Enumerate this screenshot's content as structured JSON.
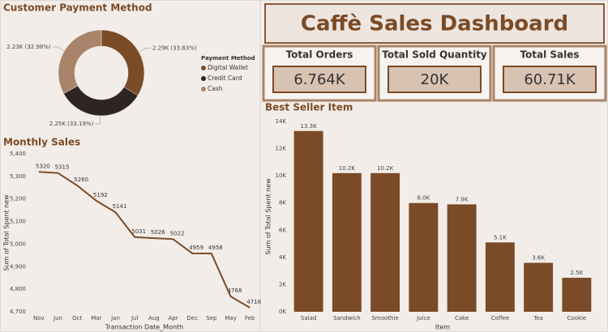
{
  "title": "Caffè Sales Dashboard",
  "cards": [
    {
      "label": "Total Orders",
      "value": "6.764K"
    },
    {
      "label": "Total Sold Quantity",
      "value": "20K"
    },
    {
      "label": "Total Sales",
      "value": "60.71K"
    }
  ],
  "chart_data": [
    {
      "type": "pie",
      "title": "Customer Payment Method",
      "legend_title": "Payment Method",
      "categories": [
        "Digital Wallet",
        "Credit Card",
        "Cash"
      ],
      "values": [
        33.83,
        33.19,
        32.98
      ],
      "value_labels": [
        "2.29K (33.83%)",
        "2.25K (33.19%)",
        "2.23K (32.98%)"
      ],
      "colors": [
        "#7b4a26",
        "#2e2422",
        "#a98469"
      ],
      "donut": true
    },
    {
      "type": "line",
      "title": "Monthly Sales",
      "x_label": "Transaction Date_Month",
      "y_label": "Sum of Total Spent new",
      "categories": [
        "Nov",
        "Jun",
        "Oct",
        "Mar",
        "Jan",
        "Jul",
        "Aug",
        "Apr",
        "Dec",
        "Sep",
        "May",
        "Feb"
      ],
      "values": [
        5320,
        5315,
        5260,
        5192,
        5141,
        5031,
        5026,
        5022,
        4959,
        4958,
        4768,
        4718
      ],
      "color": "#7b4a26",
      "ylim": [
        4700,
        5400
      ],
      "yticks": [
        {
          "value": 4700,
          "label": "4,700"
        },
        {
          "value": 4800,
          "label": "4,800"
        },
        {
          "value": 4900,
          "label": "4,900"
        },
        {
          "value": 5000,
          "label": "5,000"
        },
        {
          "value": 5100,
          "label": "5,100"
        },
        {
          "value": 5200,
          "label": "5,200"
        },
        {
          "value": 5300,
          "label": "5,300"
        },
        {
          "value": 5400,
          "label": "5,400"
        }
      ],
      "grid": false
    },
    {
      "type": "bar",
      "title": "Best Seller Item",
      "x_label": "Item",
      "y_label": "Sum of Total Spent new",
      "categories": [
        "Salad",
        "Sandwich",
        "Smoothie",
        "Juice",
        "Cake",
        "Coffee",
        "Tea",
        "Cookie"
      ],
      "values": [
        13300,
        10200,
        10200,
        8000,
        7900,
        5100,
        3600,
        2500
      ],
      "value_labels": [
        "13.3K",
        "10.2K",
        "10.2K",
        "8.0K",
        "7.9K",
        "5.1K",
        "3.6K",
        "2.5K"
      ],
      "color": "#7b4a26",
      "ylim": [
        0,
        14000
      ],
      "yticks": [
        {
          "value": 0,
          "label": "0K"
        },
        {
          "value": 2000,
          "label": "2K"
        },
        {
          "value": 4000,
          "label": "4K"
        },
        {
          "value": 6000,
          "label": "6K"
        },
        {
          "value": 8000,
          "label": "8K"
        },
        {
          "value": 10000,
          "label": "10K"
        },
        {
          "value": 12000,
          "label": "12K"
        },
        {
          "value": 14000,
          "label": "14K"
        }
      ],
      "grid": false
    }
  ]
}
